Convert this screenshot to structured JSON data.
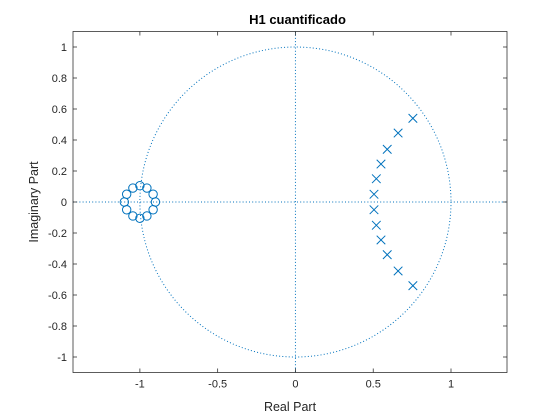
{
  "chart_data": {
    "type": "scatter",
    "title": "H1 cuantificado",
    "xlabel": "Real Part",
    "ylabel": "Imaginary Part",
    "xlim": [
      -1.43,
      1.36
    ],
    "ylim": [
      -1.1,
      1.1
    ],
    "xticks": [
      -1,
      -0.5,
      0,
      0.5,
      1
    ],
    "xtick_labels": [
      "-1",
      "-0.5",
      "0",
      "0.5",
      "1"
    ],
    "yticks": [
      1,
      0.8,
      0.6,
      0.4,
      0.2,
      0,
      -0.2,
      -0.4,
      -0.6,
      -0.8,
      -1
    ],
    "ytick_labels": [
      "1",
      "0.8",
      "0.6",
      "0.4",
      "0.2",
      "0",
      "-0.2",
      "-0.4",
      "-0.6",
      "-0.8",
      "-1"
    ],
    "grid": false,
    "unit_circle": true,
    "color": "#0072BD",
    "zeros": [
      {
        "x": -0.9,
        "y": 0.0
      },
      {
        "x": -0.915,
        "y": 0.05
      },
      {
        "x": -0.955,
        "y": 0.09
      },
      {
        "x": -1.0,
        "y": 0.105
      },
      {
        "x": -1.045,
        "y": 0.09
      },
      {
        "x": -1.085,
        "y": 0.05
      },
      {
        "x": -1.1,
        "y": 0.0
      },
      {
        "x": -1.085,
        "y": -0.05
      },
      {
        "x": -1.045,
        "y": -0.09
      },
      {
        "x": -1.0,
        "y": -0.105
      },
      {
        "x": -0.955,
        "y": -0.09
      },
      {
        "x": -0.915,
        "y": -0.05
      }
    ],
    "poles": [
      {
        "x": 0.755,
        "y": 0.54
      },
      {
        "x": 0.66,
        "y": 0.445
      },
      {
        "x": 0.59,
        "y": 0.34
      },
      {
        "x": 0.55,
        "y": 0.245
      },
      {
        "x": 0.52,
        "y": 0.15
      },
      {
        "x": 0.505,
        "y": 0.05
      },
      {
        "x": 0.505,
        "y": -0.05
      },
      {
        "x": 0.52,
        "y": -0.15
      },
      {
        "x": 0.55,
        "y": -0.245
      },
      {
        "x": 0.59,
        "y": -0.34
      },
      {
        "x": 0.66,
        "y": -0.445
      },
      {
        "x": 0.755,
        "y": -0.54
      }
    ]
  }
}
